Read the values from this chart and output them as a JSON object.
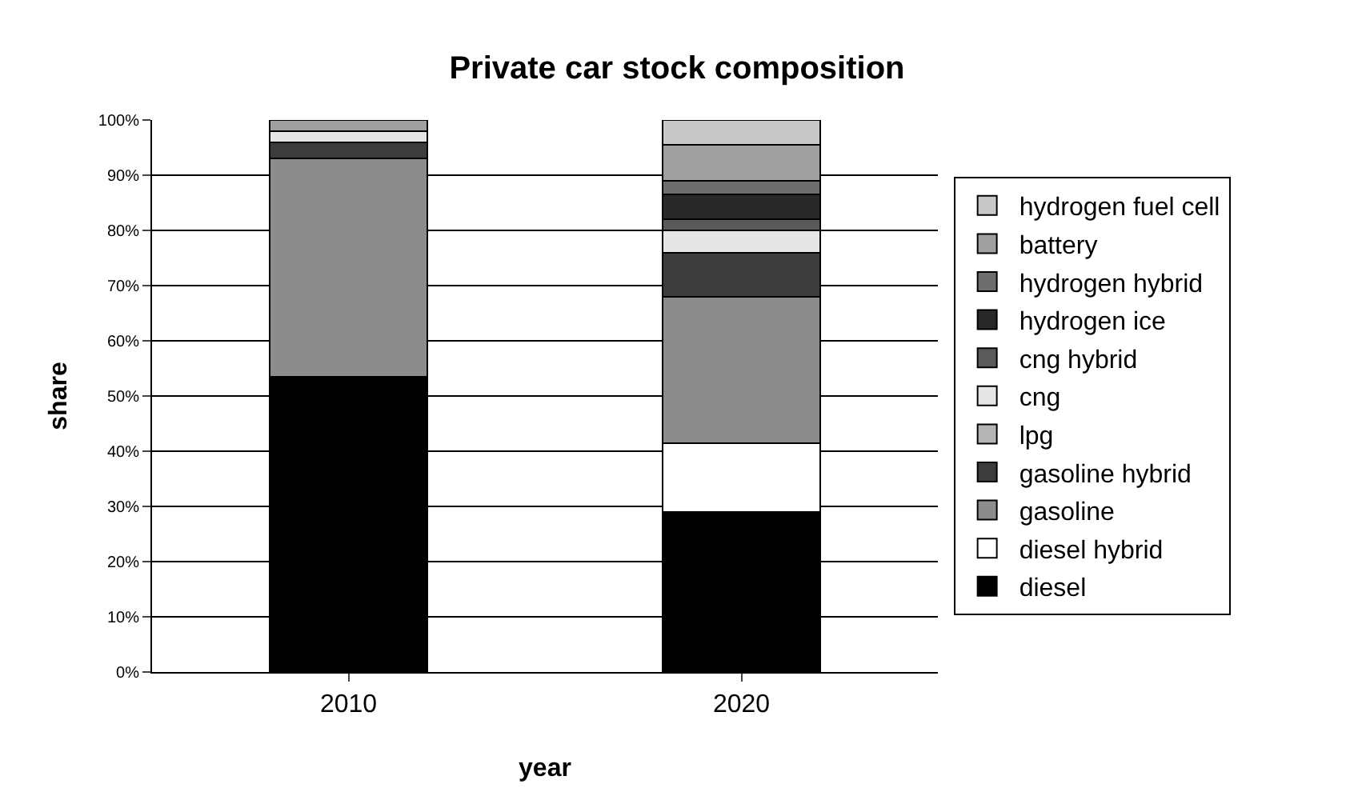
{
  "chart_data": {
    "type": "bar",
    "title": "Private car stock composition",
    "xlabel": "year",
    "ylabel": "share",
    "categories": [
      "2010",
      "2020"
    ],
    "stacked": true,
    "legend": "right",
    "grid": "y",
    "ylim": [
      0,
      100
    ],
    "yticks": [
      {
        "value": 0,
        "label": "0%"
      },
      {
        "value": 10,
        "label": "10%"
      },
      {
        "value": 20,
        "label": "20%"
      },
      {
        "value": 30,
        "label": "30%"
      },
      {
        "value": 40,
        "label": "40%"
      },
      {
        "value": 50,
        "label": "50%"
      },
      {
        "value": 60,
        "label": "60%"
      },
      {
        "value": 70,
        "label": "70%"
      },
      {
        "value": 80,
        "label": "80%"
      },
      {
        "value": 90,
        "label": "90%"
      },
      {
        "value": 100,
        "label": "100%"
      }
    ],
    "series": [
      {
        "name": "diesel",
        "color": "#000000",
        "values": [
          53.5,
          29
        ]
      },
      {
        "name": "diesel hybrid",
        "color": "#ffffff",
        "values": [
          null,
          12.5
        ]
      },
      {
        "name": "gasoline",
        "color": "#8c8c8c",
        "values": [
          39.5,
          26.5
        ]
      },
      {
        "name": "gasoline hybrid",
        "color": "#3c3c3c",
        "values": [
          3,
          8
        ]
      },
      {
        "name": "lpg",
        "color": "#b4b4b4",
        "values": [
          null,
          null
        ]
      },
      {
        "name": "cng",
        "color": "#e6e6e6",
        "values": [
          2,
          4
        ]
      },
      {
        "name": "cng hybrid",
        "color": "#5a5a5a",
        "values": [
          null,
          2
        ]
      },
      {
        "name": "hydrogen ice",
        "color": "#282828",
        "values": [
          null,
          4.5
        ]
      },
      {
        "name": "hydrogen hybrid",
        "color": "#6e6e6e",
        "values": [
          null,
          2.5
        ]
      },
      {
        "name": "battery",
        "color": "#a0a0a0",
        "values": [
          2,
          6.5
        ]
      },
      {
        "name": "hydrogen fuel cell",
        "color": "#c8c8c8",
        "values": [
          null,
          4.5
        ]
      }
    ]
  }
}
